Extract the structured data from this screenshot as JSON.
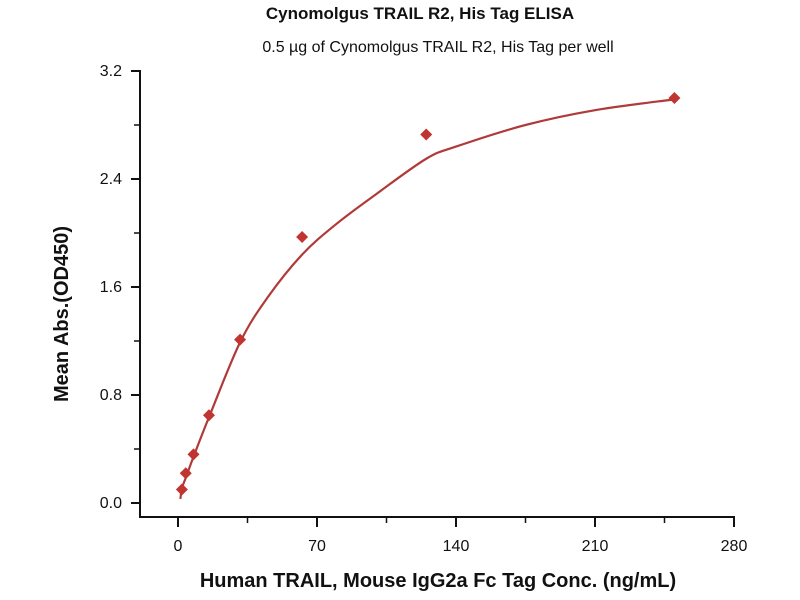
{
  "chart_data": {
    "type": "scatter",
    "title": "Cynomolgus TRAIL R2, His Tag ELISA",
    "subtitle": "0.5 µg of Cynomolgus TRAIL R2, His Tag per well",
    "xlabel": "Human TRAIL, Mouse IgG2a Fc Tag Conc. (ng/mL)",
    "ylabel": "Mean Abs.(OD450)",
    "xlim": [
      0,
      280
    ],
    "ylim": [
      0,
      3.2
    ],
    "xticks": [
      "0",
      "70",
      "140",
      "210",
      "280"
    ],
    "yticks": [
      "0.0",
      "0.8",
      "1.6",
      "2.4",
      "3.2"
    ],
    "grid": false,
    "series": [
      {
        "name": "Mean Abs.",
        "x": [
          1.95,
          3.9,
          7.8,
          15.6,
          31.25,
          62.5,
          125,
          250
        ],
        "y": [
          0.1,
          0.22,
          0.36,
          0.65,
          1.21,
          1.97,
          2.73,
          3.0
        ]
      }
    ],
    "fit_curve": {
      "x": [
        0,
        2,
        4,
        8,
        16,
        31.25,
        45,
        62.5,
        80,
        100,
        125,
        140,
        175,
        210,
        250
      ],
      "y": [
        0.03,
        0.11,
        0.19,
        0.35,
        0.65,
        1.19,
        1.52,
        1.84,
        2.07,
        2.29,
        2.55,
        2.64,
        2.8,
        2.91,
        2.99
      ]
    },
    "colors": {
      "marker": "#c0352f",
      "line": "#b03a3a",
      "axis": "#111111"
    }
  }
}
